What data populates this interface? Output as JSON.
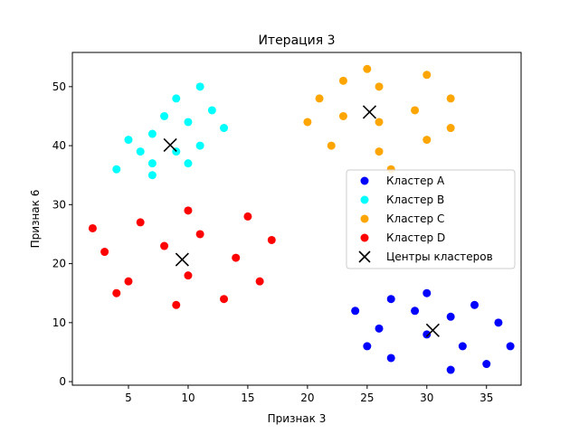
{
  "chart_data": {
    "type": "scatter",
    "title": "Итерация 3",
    "xlabel": "Признак 3",
    "ylabel": "Признак 6",
    "xlim": [
      0.3,
      37.9
    ],
    "ylim": [
      -0.6,
      55.8
    ],
    "xticks": [
      5,
      10,
      15,
      20,
      25,
      30,
      35
    ],
    "yticks": [
      0,
      10,
      20,
      30,
      40,
      50
    ],
    "grid": false,
    "legend_position": "center-right",
    "series": [
      {
        "name": "Кластер A",
        "color": "#0000ff",
        "points": [
          [
            24,
            12
          ],
          [
            25,
            6
          ],
          [
            26,
            9
          ],
          [
            27,
            14
          ],
          [
            27,
            4
          ],
          [
            29,
            12
          ],
          [
            30,
            15
          ],
          [
            30,
            8
          ],
          [
            32,
            11
          ],
          [
            32,
            2
          ],
          [
            33,
            6
          ],
          [
            34,
            13
          ],
          [
            35,
            3
          ],
          [
            36,
            10
          ],
          [
            37,
            6
          ]
        ]
      },
      {
        "name": "Кластер B",
        "color": "#00ffff",
        "points": [
          [
            4,
            36
          ],
          [
            5,
            41
          ],
          [
            6,
            39
          ],
          [
            7,
            42
          ],
          [
            7,
            37
          ],
          [
            7,
            35
          ],
          [
            8,
            45
          ],
          [
            9,
            48
          ],
          [
            9,
            39
          ],
          [
            10,
            44
          ],
          [
            10,
            37
          ],
          [
            11,
            50
          ],
          [
            11,
            40
          ],
          [
            12,
            46
          ],
          [
            13,
            43
          ]
        ]
      },
      {
        "name": "Кластер C",
        "color": "#ffa500",
        "points": [
          [
            20,
            44
          ],
          [
            21,
            48
          ],
          [
            22,
            40
          ],
          [
            23,
            51
          ],
          [
            23,
            45
          ],
          [
            25,
            53
          ],
          [
            26,
            50
          ],
          [
            26,
            44
          ],
          [
            26,
            39
          ],
          [
            27,
            36
          ],
          [
            29,
            46
          ],
          [
            30,
            52
          ],
          [
            30,
            41
          ],
          [
            32,
            48
          ],
          [
            32,
            43
          ]
        ]
      },
      {
        "name": "Кластер D",
        "color": "#ff0000",
        "points": [
          [
            2,
            26
          ],
          [
            3,
            22
          ],
          [
            4,
            15
          ],
          [
            5,
            17
          ],
          [
            6,
            27
          ],
          [
            8,
            23
          ],
          [
            9,
            13
          ],
          [
            10,
            29
          ],
          [
            10,
            18
          ],
          [
            11,
            25
          ],
          [
            13,
            14
          ],
          [
            14,
            21
          ],
          [
            15,
            28
          ],
          [
            16,
            17
          ],
          [
            17,
            24
          ]
        ]
      }
    ],
    "centers": {
      "name": "Центры кластеров",
      "color": "#000000",
      "marker": "x",
      "points": [
        [
          30.5,
          8.7
        ],
        [
          8.5,
          40.1
        ],
        [
          25.2,
          45.7
        ],
        [
          9.5,
          20.7
        ]
      ]
    }
  }
}
